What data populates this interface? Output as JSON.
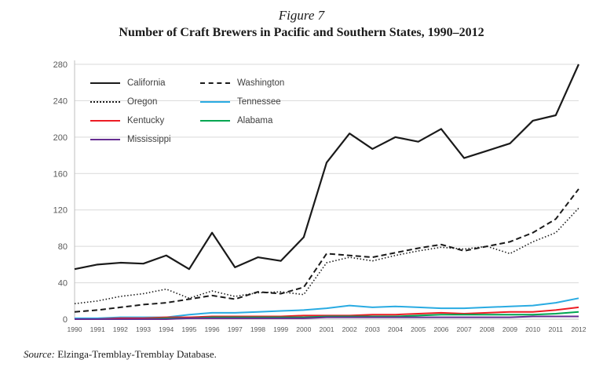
{
  "figure": {
    "label": "Figure 7",
    "title": "Number of Craft Brewers in Pacific and Southern States, 1990–2012"
  },
  "source": {
    "prefix": "Source:",
    "text": " Elzinga-Tremblay-Tremblay Database."
  },
  "chart_data": {
    "type": "line",
    "title": "Number of Craft Brewers in Pacific and Southern States, 1990–2012",
    "xlabel": "",
    "ylabel": "",
    "ylim": [
      0,
      280
    ],
    "yticks": [
      0,
      40,
      80,
      120,
      160,
      200,
      240,
      280
    ],
    "grid": "horizontal",
    "legend_position": "top-left-inside",
    "categories": [
      "1990",
      "1991",
      "1992",
      "1993",
      "1994",
      "1995",
      "1996",
      "1997",
      "1998",
      "1999",
      "2000",
      "2001",
      "2002",
      "2003",
      "2004",
      "2005",
      "2006",
      "2007",
      "2008",
      "2009",
      "2010",
      "2011",
      "2012"
    ],
    "legend_columns": [
      [
        "California",
        "Oregon",
        "Kentucky",
        "Mississippi"
      ],
      [
        "Washington",
        "Tennessee",
        "Alabama"
      ]
    ],
    "series": [
      {
        "name": "California",
        "color": "#1a1a1a",
        "line_style": "solid",
        "width": 2.2,
        "values": [
          55,
          60,
          62,
          61,
          70,
          55,
          95,
          57,
          68,
          64,
          90,
          172,
          204,
          187,
          200,
          195,
          209,
          177,
          185,
          193,
          218,
          224,
          280
        ]
      },
      {
        "name": "Washington",
        "color": "#1a1a1a",
        "line_style": "dashed",
        "dash": "7,4",
        "width": 2,
        "values": [
          8,
          10,
          13,
          16,
          18,
          22,
          26,
          22,
          30,
          28,
          35,
          72,
          70,
          68,
          73,
          78,
          82,
          75,
          80,
          85,
          95,
          110,
          143
        ]
      },
      {
        "name": "Oregon",
        "color": "#1a1a1a",
        "line_style": "dotted",
        "dash": "1.5,2.5",
        "width": 1.6,
        "values": [
          17,
          20,
          25,
          28,
          33,
          23,
          31,
          25,
          29,
          30,
          27,
          62,
          68,
          64,
          70,
          75,
          79,
          77,
          80,
          72,
          85,
          95,
          122
        ]
      },
      {
        "name": "Tennessee",
        "color": "#29abe2",
        "line_style": "solid",
        "width": 2,
        "values": [
          1,
          1,
          2,
          2,
          2,
          5,
          7,
          7,
          8,
          9,
          10,
          12,
          15,
          13,
          14,
          13,
          12,
          12,
          13,
          14,
          15,
          18,
          23
        ]
      },
      {
        "name": "Kentucky",
        "color": "#ed1c24",
        "line_style": "solid",
        "width": 2,
        "values": [
          0,
          0,
          1,
          1,
          2,
          2,
          3,
          3,
          3,
          3,
          4,
          4,
          4,
          5,
          5,
          6,
          7,
          6,
          7,
          8,
          8,
          10,
          13
        ]
      },
      {
        "name": "Alabama",
        "color": "#00a651",
        "line_style": "solid",
        "width": 2,
        "values": [
          0,
          0,
          0,
          0,
          1,
          1,
          2,
          2,
          2,
          2,
          2,
          3,
          3,
          3,
          3,
          4,
          5,
          5,
          5,
          5,
          5,
          6,
          8
        ]
      },
      {
        "name": "Mississippi",
        "color": "#662d91",
        "line_style": "solid",
        "width": 2,
        "values": [
          0,
          0,
          0,
          0,
          0,
          1,
          1,
          1,
          1,
          1,
          1,
          2,
          2,
          2,
          2,
          2,
          2,
          2,
          2,
          2,
          3,
          3,
          3
        ]
      }
    ]
  }
}
